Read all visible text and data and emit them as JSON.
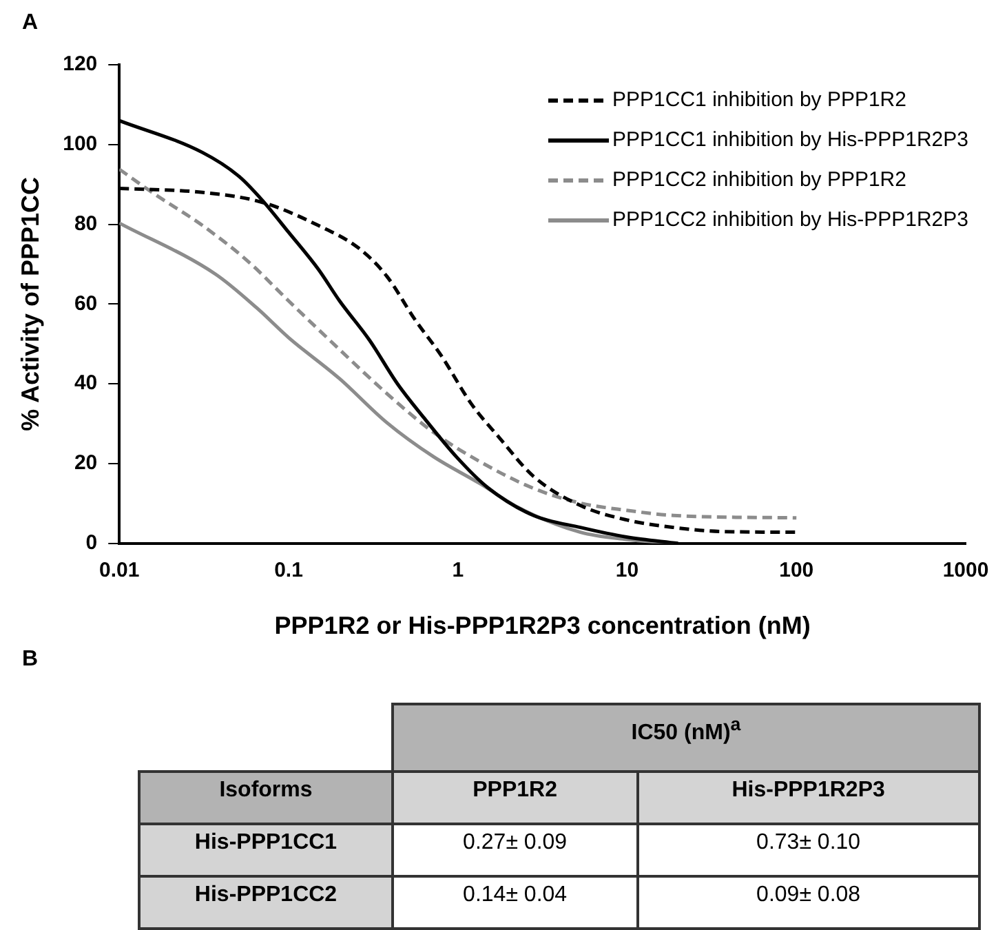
{
  "chart_data": [
    {
      "type": "line",
      "title": "A",
      "xlabel": "PPP1R2 or His-PPP1R2P3 concentration (nM)",
      "ylabel": "% Activity of PPP1CC",
      "log": "x",
      "xlim": [
        0.01,
        1000
      ],
      "xticks": [
        0.01,
        0.1,
        1,
        10,
        100,
        1000
      ],
      "ylim": [
        0,
        120
      ],
      "yticks": [
        0,
        20,
        40,
        60,
        80,
        100,
        120
      ],
      "grid": false,
      "legend": "top right",
      "marker": "none",
      "series": [
        {
          "name": "PPP1CC1 inhibition by PPP1R2",
          "color": "#000000",
          "line_style": "dashed",
          "x": [
            0.01,
            0.031,
            0.07,
            0.15,
            0.26,
            0.38,
            0.56,
            0.8,
            1.2,
            1.75,
            2.8,
            5.3,
            9.9,
            18.8,
            35,
            100
          ],
          "values": [
            89,
            88,
            85.5,
            79.7,
            74,
            67,
            56,
            47,
            35,
            26.6,
            16.8,
            9.5,
            5.9,
            4,
            3,
            2.8
          ]
        },
        {
          "name": "PPP1CC1 inhibition by His-PPP1R2P3",
          "color": "#000000",
          "line_style": "solid",
          "x": [
            0.01,
            0.031,
            0.051,
            0.07,
            0.1,
            0.15,
            0.2,
            0.3,
            0.44,
            0.63,
            0.98,
            1.5,
            2.8,
            5.3,
            9.9,
            20
          ],
          "values": [
            106,
            98,
            92,
            86,
            78,
            68.7,
            60.8,
            51,
            40,
            31.5,
            21.7,
            14,
            7,
            4,
            1.6,
            0
          ]
        },
        {
          "name": "PPP1CC2 inhibition by PPP1R2",
          "color": "#8c8c8c",
          "line_style": "dashed",
          "x": [
            0.01,
            0.016,
            0.031,
            0.058,
            0.1,
            0.2,
            0.38,
            0.72,
            1.35,
            2.8,
            5.3,
            9.9,
            18.8,
            100
          ],
          "values": [
            93.8,
            87.7,
            79.7,
            70.6,
            60.8,
            48.6,
            37.6,
            27.8,
            20.5,
            13.8,
            10.1,
            8.3,
            7,
            6.4
          ]
        },
        {
          "name": "PPP1CC2 inhibition by His-PPP1R2P3",
          "color": "#8c8c8c",
          "line_style": "solid",
          "x": [
            0.01,
            0.037,
            0.065,
            0.1,
            0.2,
            0.38,
            0.72,
            1.35,
            2.3,
            5.3,
            9.9,
            18.8
          ],
          "values": [
            80.3,
            67.5,
            59,
            51.6,
            41.3,
            30.3,
            21.7,
            15,
            8.9,
            2.8,
            1,
            0
          ]
        }
      ]
    },
    {
      "type": "other",
      "title": "B",
      "annotations": [
        "IC50 (nM)$^{a}$",
        "Isoforms",
        "PPP1R2",
        "His-PPP1R2P3",
        "His-PPP1CC1",
        "0.27± 0.09",
        "0.73± 0.10",
        "His-PPP1CC2",
        "0.14± 0.04",
        "0.09± 0.08"
      ]
    }
  ]
}
